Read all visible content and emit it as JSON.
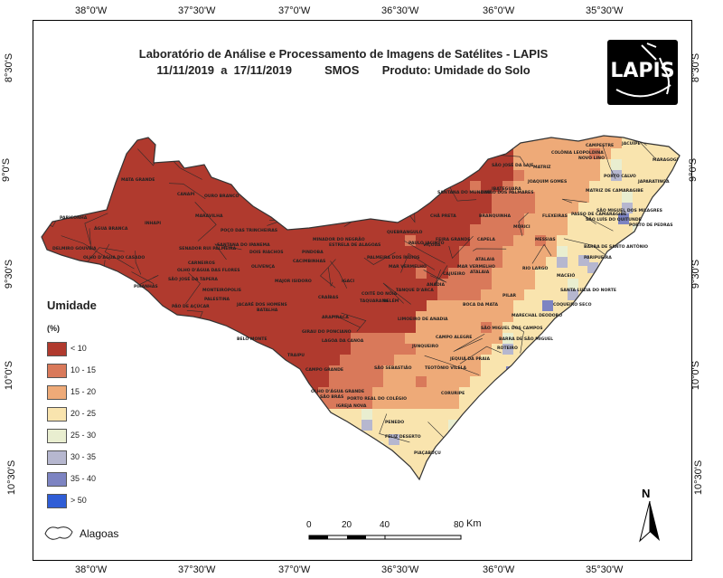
{
  "title_line1": "Laboratório de Análise e Processamento de Imagens de Satélites - LAPIS",
  "title_line2": "11/11/2019  a  17/11/2019          SMOS       Produto: Umidade do Solo",
  "logo_text": "LAPIS",
  "lon_ticks": [
    "38°0'W",
    "37°30'W",
    "37°0'W",
    "36°30'W",
    "36°0'W",
    "35°30'W"
  ],
  "lat_ticks": [
    "8°30'S",
    "9°0'S",
    "9°30'S",
    "10°0'S",
    "10°30'S"
  ],
  "legend": {
    "title": "Umidade",
    "unit": "(%)",
    "classes": [
      {
        "label": "< 10",
        "color": "#b03a2e"
      },
      {
        "label": "10 - 15",
        "color": "#d9795a"
      },
      {
        "label": "15 - 20",
        "color": "#eeaa78"
      },
      {
        "label": "20 - 25",
        "color": "#f9e4ae"
      },
      {
        "label": "25 - 30",
        "color": "#e9eed0"
      },
      {
        "label": "30 - 35",
        "color": "#b6b7cf"
      },
      {
        "label": "35 - 40",
        "color": "#7d84c2"
      },
      {
        "label": "> 50",
        "color": "#2f5dd6"
      }
    ],
    "outline_label": "Alagoas"
  },
  "scale": {
    "labels": [
      "0",
      "20",
      "40",
      "80"
    ],
    "unit": "Km"
  },
  "north_label": "N",
  "municipalities": [
    "MATA GRANDE",
    "CANAPI",
    "OURO BRANCO",
    "PARICONHA",
    "ÁGUA BRANCA",
    "INHAPI",
    "MARAVILHA",
    "DELMIRO GOUVEIA",
    "OLHO D'ÁGUA DO CASADO",
    "SENADOR RUI PALMEIRA",
    "POÇO DAS TRINCHEIRAS",
    "SANTANA DO IPANEMA",
    "DOIS RIACHOS",
    "CARNEIROS",
    "OLHO D'ÁGUA DAS FLORES",
    "OLIVENÇA",
    "SÃO JOSÉ DA TAPERA",
    "PIRANHAS",
    "MONTEIRÓPOLIS",
    "PÃO DE AÇÚCAR",
    "PALESTINA",
    "JACARÉ DOS HOMENS",
    "BATALHA",
    "BELO MONTE",
    "MAJOR ISIDORO",
    "CRAÍBAS",
    "ARAPIRACA",
    "GIRAU DO PONCIANO",
    "LAGOA DA CANOA",
    "TRAIPU",
    "SÃO BRÁS",
    "OLHO D'ÁGUA GRANDE",
    "IGREJA NOVA",
    "CAMPO GRANDE",
    "PORTO REAL DO COLÉGIO",
    "PENEDO",
    "FELIZ DESERTO",
    "PIAÇABUÇU",
    "CORURIPE",
    "JEQUIÁ DA PRAIA",
    "SÃO MIGUEL DOS CAMPOS",
    "ROTEIRO",
    "BARRA DE SÃO MIGUEL",
    "MARECHAL DEODORO",
    "PILAR",
    "MACEIÓ",
    "RIO LARGO",
    "MESSIAS",
    "FLEXEIRAS",
    "JOAQUIM GOMES",
    "MATRIZ DE CAMARAGIBE",
    "PORTO CALVO",
    "JAPARATINGA",
    "MARAGOGI",
    "JACUÍPE",
    "CAMPESTRE",
    "COLÔNIA LEOPOLDINA",
    "NOVO LINO",
    "MATRIZ",
    "SÃO JOSÉ DA LAJE",
    "IBATEGUARA",
    "SANTANA DO MUNDAÚ",
    "UNIÃO DOS PALMARES",
    "BRANQUINHA",
    "MURICI",
    "CAPELA",
    "ATALAIA",
    "PAULO JACINTO",
    "VIÇOSA",
    "CHÃ PRETA",
    "MAR VERMELHO",
    "CAJUEIRO",
    "ANADIA",
    "TANQUE D'ARCA",
    "LIMOEIRO DE ANADIA",
    "COITÉ DO NÓIA",
    "TAQUARANA",
    "BELÉM",
    "PALMEIRA DOS ÍNDIOS",
    "QUEBRANGULO",
    "MINADOR DO NEGRÃO",
    "ESTRELA DE ALAGOAS",
    "IGACI",
    "JUNQUEIRO",
    "TEOTÔNIO VILELA",
    "CAMPO ALEGRE",
    "SÃO SEBASTIÃO",
    "BOCA DA MATA",
    "PASSO DE CAMARAGIBE",
    "SÃO LUÍS DO QUITUNDE",
    "BARRA DE SANTO ANTÔNIO",
    "PARIPUEIRA",
    "SANTA LUZIA DO NORTE",
    "COQUEIRO SECO",
    "SÃO MIGUEL DOS MILAGRES",
    "PORTO DE PEDRAS",
    "CACIMBINHAS",
    "PINDOBA",
    "MAR VERMELHO",
    "FEIRA GRANDE",
    "ATALAIA"
  ]
}
